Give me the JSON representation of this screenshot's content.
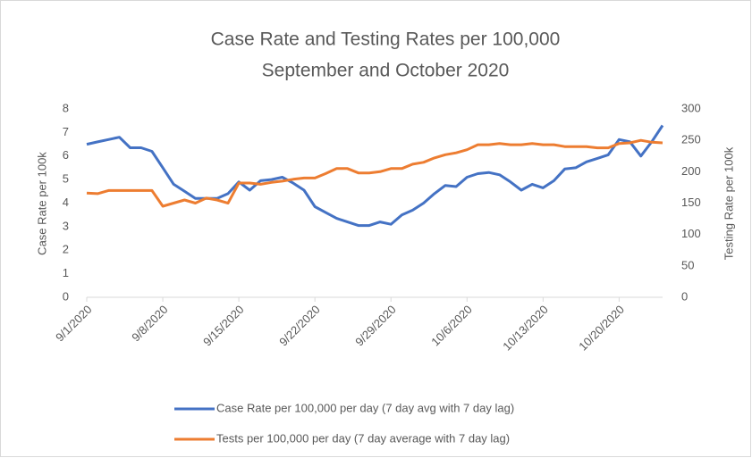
{
  "chart_data": {
    "type": "line",
    "title": [
      "Case Rate and Testing Rates per 100,000",
      "September and October 2020"
    ],
    "y_label": "Case Rate per 100k",
    "y2_label": "Testing Rate per 100k",
    "categories": [
      "9/1/2020",
      null,
      null,
      null,
      null,
      null,
      null,
      "9/8/2020",
      null,
      null,
      null,
      null,
      null,
      null,
      "9/15/2020",
      null,
      null,
      null,
      null,
      null,
      null,
      "9/22/2020",
      null,
      null,
      null,
      null,
      null,
      null,
      "9/29/2020",
      null,
      null,
      null,
      null,
      null,
      null,
      "10/6/2020",
      null,
      null,
      null,
      null,
      null,
      null,
      "10/13/2020",
      null,
      null,
      null,
      null,
      null,
      null,
      "10/20/2020",
      null,
      null,
      null,
      null
    ],
    "series": [
      {
        "name": "Case Rate per 100,000 per day (7 day avg with 7 day lag)",
        "color": "#4472c4",
        "axis": "y",
        "values": [
          6.5,
          6.6,
          6.7,
          6.8,
          6.35,
          6.35,
          6.2,
          5.5,
          4.8,
          4.5,
          4.2,
          4.2,
          4.2,
          4.4,
          4.9,
          4.55,
          4.95,
          5.0,
          5.1,
          4.85,
          4.55,
          3.85,
          3.6,
          3.35,
          3.2,
          3.05,
          3.05,
          3.2,
          3.1,
          3.5,
          3.7,
          4.0,
          4.4,
          4.75,
          4.7,
          5.1,
          5.25,
          5.3,
          5.2,
          4.9,
          4.55,
          4.8,
          4.65,
          4.95,
          5.45,
          5.5,
          5.75,
          5.9,
          6.05,
          6.7,
          6.6,
          6.0,
          6.6,
          7.3
        ]
      },
      {
        "name": "Tests per 100,000 per day (7 day average with 7 day lag)",
        "color": "#ed7d31",
        "axis": "y2",
        "values": [
          166,
          165,
          170,
          170,
          170,
          170,
          170,
          145,
          150,
          155,
          150,
          158,
          155,
          150,
          182,
          182,
          180,
          183,
          185,
          188,
          190,
          190,
          197,
          205,
          205,
          198,
          198,
          200,
          205,
          205,
          212,
          215,
          222,
          227,
          230,
          235,
          243,
          243,
          245,
          243,
          243,
          245,
          243,
          243,
          240,
          240,
          240,
          238,
          238,
          245,
          246,
          250,
          247,
          246
        ]
      }
    ],
    "ylim": [
      0,
      8
    ],
    "yticks": [
      0,
      1,
      2,
      3,
      4,
      5,
      6,
      7,
      8
    ],
    "y2lim": [
      0,
      300
    ],
    "y2ticks": [
      0,
      50,
      100,
      150,
      200,
      250,
      300
    ],
    "grid": false,
    "legend": "bottom"
  }
}
